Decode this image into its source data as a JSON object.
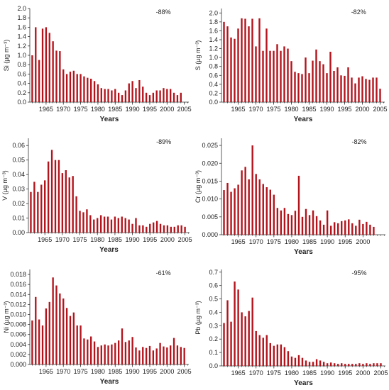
{
  "figure": {
    "bar_color": "#b3141c",
    "axis_color": "#333333",
    "background": "#ffffff"
  },
  "chart_data": [
    {
      "type": "bar",
      "ylabel": "Si (µg m⁻³)",
      "xlabel": "Years",
      "annotation": "-88%",
      "ylim": [
        0,
        2.0
      ],
      "yticks": [
        "0.0",
        "0.2",
        "0.4",
        "0.6",
        "0.8",
        "1.0",
        "1.2",
        "1.4",
        "1.6",
        "1.8",
        "2.0"
      ],
      "xticks": [
        "1965",
        "1970",
        "1975",
        "1980",
        "1985",
        "1990",
        "1995",
        "2000",
        "2005"
      ],
      "x": [
        1961,
        1962,
        1963,
        1964,
        1965,
        1966,
        1967,
        1968,
        1969,
        1970,
        1971,
        1972,
        1973,
        1974,
        1975,
        1976,
        1977,
        1978,
        1979,
        1980,
        1981,
        1982,
        1983,
        1984,
        1985,
        1986,
        1987,
        1988,
        1989,
        1990,
        1991,
        1992,
        1993,
        1994,
        1995,
        1996,
        1997,
        1998,
        1999,
        2000,
        2001,
        2002,
        2003,
        2004
      ],
      "values": [
        1.0,
        1.6,
        0.9,
        1.57,
        1.6,
        1.48,
        1.3,
        1.1,
        1.09,
        0.7,
        0.6,
        0.65,
        0.67,
        0.6,
        0.6,
        0.55,
        0.52,
        0.5,
        0.45,
        0.38,
        0.3,
        0.28,
        0.28,
        0.25,
        0.28,
        0.2,
        0.15,
        0.25,
        0.4,
        0.45,
        0.3,
        0.47,
        0.33,
        0.2,
        0.15,
        0.2,
        0.25,
        0.25,
        0.3,
        0.28,
        0.28,
        0.2,
        0.15,
        0.2
      ]
    },
    {
      "type": "bar",
      "ylabel": "S (µg m⁻³)",
      "xlabel": "Years",
      "annotation": "-82%",
      "ylim": [
        0,
        2.1
      ],
      "yticks": [
        "0.0",
        "0.2",
        "0.4",
        "0.6",
        "0.8",
        "1.0",
        "1.2",
        "1.4",
        "1.6",
        "1.8",
        "2.0"
      ],
      "xticks": [
        "1965",
        "1970",
        "1975",
        "1980",
        "1985",
        "1990",
        "1995",
        "2000",
        "2005"
      ],
      "x": [
        1961,
        1962,
        1963,
        1964,
        1965,
        1966,
        1967,
        1968,
        1969,
        1970,
        1971,
        1972,
        1973,
        1974,
        1975,
        1976,
        1977,
        1978,
        1979,
        1980,
        1981,
        1982,
        1983,
        1984,
        1985,
        1986,
        1987,
        1988,
        1989,
        1990,
        1991,
        1992,
        1993,
        1994,
        1995,
        1996,
        1997,
        1998,
        1999,
        2000,
        2001,
        2002,
        2003,
        2004,
        2005
      ],
      "values": [
        1.8,
        1.7,
        1.45,
        1.42,
        1.65,
        1.88,
        1.87,
        1.7,
        1.87,
        1.25,
        1.88,
        1.15,
        1.65,
        1.15,
        1.15,
        1.3,
        1.15,
        1.25,
        1.2,
        0.92,
        0.68,
        0.65,
        0.63,
        1.0,
        0.65,
        0.93,
        1.18,
        0.92,
        0.85,
        0.65,
        1.13,
        0.7,
        0.78,
        0.6,
        0.59,
        0.78,
        0.55,
        0.42,
        0.55,
        0.58,
        0.52,
        0.5,
        0.55,
        0.55,
        0.3
      ]
    },
    {
      "type": "bar",
      "ylabel": "V (µg m⁻³)",
      "xlabel": "Years",
      "annotation": "-89%",
      "ylim": [
        0,
        0.065
      ],
      "yticks": [
        "0.00",
        "0.01",
        "0.02",
        "0.03",
        "0.04",
        "0.05",
        "0.06"
      ],
      "xticks": [
        "1965",
        "1970",
        "1975",
        "1980",
        "1985",
        "1990",
        "1995",
        "2000",
        "2005"
      ],
      "x": [
        1961,
        1962,
        1963,
        1964,
        1965,
        1966,
        1967,
        1968,
        1969,
        1970,
        1971,
        1972,
        1973,
        1974,
        1975,
        1976,
        1977,
        1978,
        1979,
        1980,
        1981,
        1982,
        1983,
        1984,
        1985,
        1986,
        1987,
        1988,
        1989,
        1990,
        1991,
        1992,
        1993,
        1994,
        1995,
        1996,
        1997,
        1998,
        1999,
        2000,
        2001,
        2002,
        2003,
        2004,
        2005
      ],
      "values": [
        0.028,
        0.035,
        0.028,
        0.033,
        0.036,
        0.049,
        0.057,
        0.05,
        0.05,
        0.041,
        0.043,
        0.038,
        0.039,
        0.025,
        0.015,
        0.014,
        0.016,
        0.012,
        0.009,
        0.01,
        0.012,
        0.011,
        0.011,
        0.009,
        0.011,
        0.01,
        0.011,
        0.01,
        0.009,
        0.006,
        0.01,
        0.005,
        0.005,
        0.004,
        0.006,
        0.007,
        0.008,
        0.006,
        0.005,
        0.005,
        0.004,
        0.004,
        0.005,
        0.005,
        0.004
      ]
    },
    {
      "type": "bar",
      "ylabel": "Cr (µg m⁻³)",
      "xlabel": "Years",
      "annotation": "-82%",
      "ylim": [
        0,
        0.027
      ],
      "yticks": [
        "0.000",
        "0.005",
        "0.010",
        "0.015",
        "0.020",
        "0.025"
      ],
      "xticks": [
        "1965",
        "1970",
        "1975",
        "1980",
        "1985",
        "1990",
        "1995",
        "2000"
      ],
      "x": [
        1961,
        1962,
        1963,
        1964,
        1965,
        1966,
        1967,
        1968,
        1969,
        1970,
        1971,
        1972,
        1973,
        1974,
        1975,
        1976,
        1977,
        1978,
        1979,
        1980,
        1981,
        1982,
        1983,
        1984,
        1985,
        1986,
        1987,
        1988,
        1989,
        1990,
        1991,
        1992,
        1993,
        1994,
        1995,
        1996,
        1997,
        1998,
        1999,
        2000,
        2001,
        2002,
        2003
      ],
      "values": [
        0.0125,
        0.0145,
        0.012,
        0.013,
        0.014,
        0.018,
        0.019,
        0.0155,
        0.025,
        0.017,
        0.0155,
        0.0142,
        0.0133,
        0.0126,
        0.0112,
        0.0075,
        0.0068,
        0.0075,
        0.0058,
        0.0055,
        0.0067,
        0.0165,
        0.005,
        0.0072,
        0.0055,
        0.0068,
        0.0052,
        0.004,
        0.0028,
        0.0068,
        0.0025,
        0.0035,
        0.0032,
        0.0038,
        0.004,
        0.0043,
        0.0032,
        0.0025,
        0.0042,
        0.003,
        0.0036,
        0.0028,
        0.0022
      ]
    },
    {
      "type": "bar",
      "ylabel": "Ni (µg m⁻³)",
      "xlabel": "Years",
      "annotation": "-61%",
      "ylim": [
        0,
        0.019
      ],
      "yticks": [
        "0.000",
        "0.002",
        "0.004",
        "0.006",
        "0.008",
        "0.010",
        "0.012",
        "0.014",
        "0.016",
        "0.018"
      ],
      "xticks": [
        "1965",
        "1970",
        "1975",
        "1980",
        "1985",
        "1990",
        "1995",
        "2000",
        "2005"
      ],
      "x": [
        1961,
        1962,
        1963,
        1964,
        1965,
        1966,
        1967,
        1968,
        1969,
        1970,
        1971,
        1972,
        1973,
        1974,
        1975,
        1976,
        1977,
        1978,
        1979,
        1980,
        1981,
        1982,
        1983,
        1984,
        1985,
        1986,
        1987,
        1988,
        1989,
        1990,
        1991,
        1992,
        1993,
        1994,
        1995,
        1996,
        1997,
        1998,
        1999,
        2000,
        2001,
        2002,
        2003,
        2004,
        2005
      ],
      "values": [
        0.0088,
        0.0135,
        0.009,
        0.0078,
        0.0112,
        0.0125,
        0.0174,
        0.0158,
        0.0142,
        0.0132,
        0.0113,
        0.0097,
        0.0104,
        0.0078,
        0.0078,
        0.0052,
        0.005,
        0.0056,
        0.0046,
        0.0035,
        0.0038,
        0.004,
        0.0038,
        0.004,
        0.0043,
        0.0048,
        0.0072,
        0.0045,
        0.0048,
        0.0055,
        0.0034,
        0.0028,
        0.0035,
        0.0033,
        0.0037,
        0.0028,
        0.0032,
        0.0043,
        0.0036,
        0.0034,
        0.0038,
        0.0053,
        0.0038,
        0.0035,
        0.0033
      ]
    },
    {
      "type": "bar",
      "ylabel": "Pb (µg m⁻³)",
      "xlabel": "Years",
      "annotation": "-95%",
      "ylim": [
        0,
        0.72
      ],
      "yticks": [
        "0.0",
        "0.1",
        "0.2",
        "0.3",
        "0.4",
        "0.5",
        "0.6",
        "0.7"
      ],
      "xticks": [
        "1965",
        "1970",
        "1975",
        "1980",
        "1985",
        "1990",
        "1995",
        "2000",
        "2005"
      ],
      "x": [
        1961,
        1962,
        1963,
        1964,
        1965,
        1966,
        1967,
        1968,
        1969,
        1970,
        1971,
        1972,
        1973,
        1974,
        1975,
        1976,
        1977,
        1978,
        1979,
        1980,
        1981,
        1982,
        1983,
        1984,
        1985,
        1986,
        1987,
        1988,
        1989,
        1990,
        1991,
        1992,
        1993,
        1994,
        1995,
        1996,
        1997,
        1998,
        1999,
        2000,
        2001,
        2002,
        2003,
        2004,
        2005
      ],
      "values": [
        0.32,
        0.49,
        0.33,
        0.63,
        0.57,
        0.4,
        0.37,
        0.41,
        0.51,
        0.26,
        0.23,
        0.21,
        0.23,
        0.17,
        0.15,
        0.16,
        0.16,
        0.14,
        0.11,
        0.07,
        0.06,
        0.08,
        0.06,
        0.04,
        0.03,
        0.03,
        0.05,
        0.04,
        0.03,
        0.02,
        0.025,
        0.02,
        0.015,
        0.02,
        0.015,
        0.015,
        0.015,
        0.015,
        0.02,
        0.015,
        0.02,
        0.015,
        0.02,
        0.02,
        0.02
      ]
    }
  ]
}
